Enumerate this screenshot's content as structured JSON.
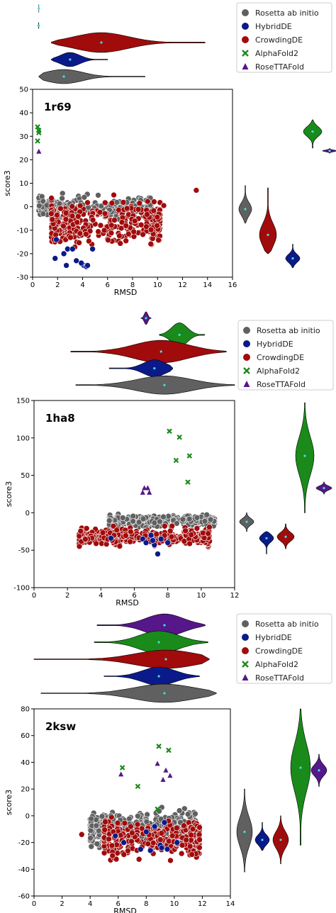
{
  "legend": {
    "items": [
      {
        "label": "Rosetta ab initio",
        "color": "#606060",
        "marker": "circle"
      },
      {
        "label": "HybridDE",
        "color": "#0b1a8a",
        "marker": "circle"
      },
      {
        "label": "CrowdingDE",
        "color": "#a10b0b",
        "marker": "circle"
      },
      {
        "label": "AlphaFold2",
        "color": "#1a8a1a",
        "marker": "x"
      },
      {
        "label": "RoseTTAFold",
        "color": "#55178a",
        "marker": "triangle"
      }
    ]
  },
  "chart_data": [
    {
      "type": "scatter",
      "panel_label": "1r69",
      "xlabel": "RMSD",
      "ylabel": "score3",
      "xlim": [
        0,
        16
      ],
      "ylim": [
        -30,
        50
      ],
      "xticks": [
        0,
        2,
        4,
        6,
        8,
        10,
        12,
        14,
        16
      ],
      "yticks": [
        -30,
        -20,
        -10,
        0,
        10,
        20,
        30,
        40,
        50
      ],
      "clouds": {
        "Rosetta ab initio": {
          "x_range": [
            0.5,
            9.5
          ],
          "y_range": [
            -7,
            7
          ],
          "count": 260
        },
        "CrowdingDE": {
          "x_range": [
            1.5,
            10.2
          ],
          "y_range": [
            -20,
            5
          ],
          "count": 360
        }
      },
      "points": {
        "HybridDE": [
          [
            1.8,
            -22
          ],
          [
            2.5,
            -20
          ],
          [
            2.8,
            -18
          ],
          [
            2.7,
            -25
          ],
          [
            4.1,
            -25
          ],
          [
            4.3,
            -25.5
          ],
          [
            4.4,
            -25
          ],
          [
            3.5,
            -23
          ],
          [
            3.9,
            -24
          ],
          [
            4.8,
            -18
          ],
          [
            1.9,
            -14
          ],
          [
            3.2,
            -18
          ]
        ],
        "CrowdingDE outliers": [
          [
            13.1,
            7
          ],
          [
            10.5,
            0.5
          ],
          [
            6.5,
            5
          ]
        ],
        "AlphaFold2": [
          [
            0.4,
            34
          ],
          [
            0.5,
            31.5
          ],
          [
            0.4,
            28
          ],
          [
            0.5,
            32.5
          ]
        ],
        "RoseTTAFold": [
          [
            0.5,
            23.5
          ]
        ]
      },
      "right_violins": [
        {
          "series": "Rosetta ab initio",
          "median": -1,
          "range": [
            -7,
            9
          ]
        },
        {
          "series": "HybridDE",
          "median": -22,
          "range": [
            -26,
            -16
          ]
        },
        {
          "series": "CrowdingDE",
          "median": -12,
          "range": [
            -20,
            8
          ]
        },
        {
          "series": "AlphaFold2",
          "median": 32,
          "range": [
            25,
            37
          ]
        },
        {
          "series": "RoseTTAFold",
          "median": 23.8,
          "range": [
            22.8,
            24.8
          ]
        }
      ],
      "top_violins": [
        {
          "series": "RoseTTAFold",
          "median": 0.5,
          "range": [
            0.5,
            0.5
          ]
        },
        {
          "series": "AlphaFold2",
          "median": 0.5,
          "range": [
            0.4,
            0.5
          ]
        },
        {
          "series": "CrowdingDE",
          "median": 5.5,
          "range": [
            1.5,
            13.8
          ]
        },
        {
          "series": "HybridDE",
          "median": 3,
          "range": [
            1.5,
            6
          ]
        },
        {
          "series": "Rosetta ab initio",
          "median": 2.5,
          "range": [
            0.5,
            9
          ]
        }
      ]
    },
    {
      "type": "scatter",
      "panel_label": "1ha8",
      "xlabel": "RMSD",
      "ylabel": "score3",
      "xlim": [
        0,
        12
      ],
      "ylim": [
        -100,
        150
      ],
      "xticks": [
        0,
        2,
        4,
        6,
        8,
        10,
        12
      ],
      "yticks": [
        -100,
        -50,
        0,
        50,
        100,
        150
      ],
      "clouds": {
        "Rosetta ab initio": {
          "x_range": [
            4.5,
            10.8
          ],
          "y_range": [
            -22,
            0
          ],
          "count": 320
        },
        "CrowdingDE": {
          "x_range": [
            2.7,
            10.5
          ],
          "y_range": [
            -48,
            -15
          ],
          "count": 380
        }
      },
      "points": {
        "HybridDE": [
          [
            4.6,
            -34
          ],
          [
            6.5,
            -35
          ],
          [
            6.7,
            -40
          ],
          [
            7.0,
            -30
          ],
          [
            7.2,
            -43
          ],
          [
            7.4,
            -55
          ],
          [
            7.6,
            -35
          ],
          [
            8.0,
            -40
          ],
          [
            7.1,
            -37
          ]
        ],
        "AlphaFold2": [
          [
            8.1,
            109
          ],
          [
            8.7,
            101
          ],
          [
            9.3,
            76
          ],
          [
            8.5,
            70
          ],
          [
            9.2,
            41
          ]
        ],
        "RoseTTAFold": [
          [
            6.6,
            33
          ],
          [
            6.8,
            33
          ],
          [
            6.5,
            27
          ],
          [
            6.9,
            27
          ]
        ]
      },
      "right_violins": [
        {
          "series": "Rosetta ab initio",
          "median": -12,
          "range": [
            -25,
            0
          ]
        },
        {
          "series": "HybridDE",
          "median": -34,
          "range": [
            -55,
            -25
          ]
        },
        {
          "series": "CrowdingDE",
          "median": -32,
          "range": [
            -48,
            -15
          ]
        },
        {
          "series": "AlphaFold2",
          "median": 76,
          "range": [
            0,
            147
          ]
        },
        {
          "series": "RoseTTAFold",
          "median": 33,
          "range": [
            25,
            41
          ]
        }
      ],
      "top_violins": [
        {
          "series": "RoseTTAFold",
          "median": 6.7,
          "range": [
            6.4,
            7.0
          ]
        },
        {
          "series": "AlphaFold2",
          "median": 8.7,
          "range": [
            7.5,
            10.2
          ]
        },
        {
          "series": "CrowdingDE",
          "median": 7.6,
          "range": [
            2.2,
            11.5
          ]
        },
        {
          "series": "HybridDE",
          "median": 7.2,
          "range": [
            4.5,
            8.3
          ]
        },
        {
          "series": "Rosetta ab initio",
          "median": 7.8,
          "range": [
            2.5,
            12
          ]
        }
      ]
    },
    {
      "type": "scatter",
      "panel_label": "2ksw",
      "xlabel": "RMSD",
      "ylabel": "score3",
      "xlim": [
        0,
        14
      ],
      "ylim": [
        -60,
        80
      ],
      "xticks": [
        0,
        2,
        4,
        6,
        8,
        10,
        12,
        14
      ],
      "yticks": [
        -60,
        -40,
        -20,
        0,
        20,
        40,
        60,
        80
      ],
      "clouds": {
        "Rosetta ab initio": {
          "x_range": [
            4,
            11.5
          ],
          "y_range": [
            -28,
            10
          ],
          "count": 340
        },
        "CrowdingDE": {
          "x_range": [
            5,
            11.8
          ],
          "y_range": [
            -36,
            2
          ],
          "count": 380
        }
      },
      "points": {
        "HybridDE": [
          [
            5.8,
            -15
          ],
          [
            6.4,
            -20
          ],
          [
            7.6,
            -25
          ],
          [
            8.3,
            -26
          ],
          [
            8.6,
            -8
          ],
          [
            9.0,
            -22
          ],
          [
            9.1,
            -24
          ],
          [
            9.5,
            -25
          ],
          [
            9.3,
            -5
          ],
          [
            10.2,
            -20
          ],
          [
            8.0,
            -12
          ]
        ],
        "CrowdingDE outliers": [
          [
            3.4,
            -14
          ]
        ],
        "AlphaFold2": [
          [
            6.3,
            36
          ],
          [
            7.4,
            22
          ],
          [
            8.9,
            52
          ],
          [
            9.6,
            49
          ],
          [
            8.8,
            5
          ]
        ],
        "RoseTTAFold": [
          [
            6.2,
            31
          ],
          [
            8.8,
            39
          ],
          [
            9.2,
            27
          ],
          [
            9.4,
            34
          ],
          [
            9.7,
            30
          ]
        ]
      },
      "right_violins": [
        {
          "series": "Rosetta ab initio",
          "median": -12,
          "range": [
            -42,
            20
          ]
        },
        {
          "series": "HybridDE",
          "median": -18,
          "range": [
            -26,
            -5
          ]
        },
        {
          "series": "CrowdingDE",
          "median": -18,
          "range": [
            -36,
            0
          ]
        },
        {
          "series": "AlphaFold2",
          "median": 36,
          "range": [
            -22,
            80
          ]
        },
        {
          "series": "RoseTTAFold",
          "median": 34,
          "range": [
            22,
            46
          ]
        }
      ],
      "top_violins": [
        {
          "series": "RoseTTAFold",
          "median": 9.3,
          "range": [
            4.5,
            12.2
          ]
        },
        {
          "series": "AlphaFold2",
          "median": 8.9,
          "range": [
            4.3,
            12.4
          ]
        },
        {
          "series": "CrowdingDE",
          "median": 9.4,
          "range": [
            0,
            12.5
          ]
        },
        {
          "series": "HybridDE",
          "median": 8.9,
          "range": [
            5.0,
            11.8
          ]
        },
        {
          "series": "Rosetta ab initio",
          "median": 9.3,
          "range": [
            0.5,
            13.0
          ]
        }
      ]
    }
  ]
}
